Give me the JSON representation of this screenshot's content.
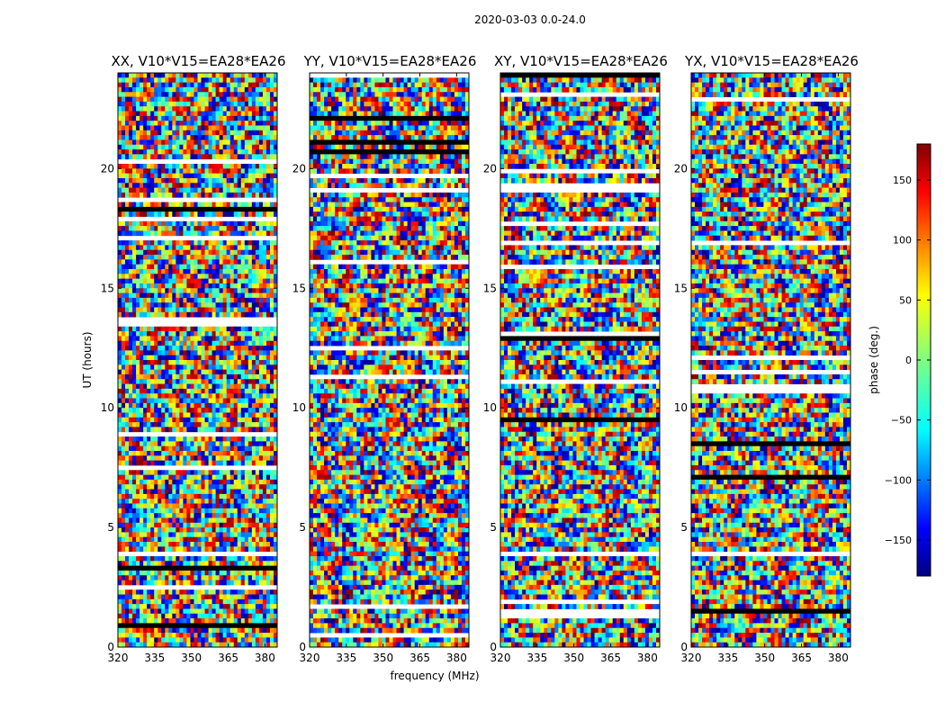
{
  "figure": {
    "suptitle": "2020-03-03 0.0-24.0",
    "ylabel": "UT (hours)",
    "xlabel": "frequency (MHz)"
  },
  "chart_data": [
    {
      "type": "heatmap",
      "title": "XX, V10*V15=EA28*EA26",
      "xlim": [
        320,
        385
      ],
      "ylim": [
        0,
        24
      ],
      "xticks": [
        320,
        335,
        350,
        365,
        380
      ],
      "yticks": [
        0,
        5,
        10,
        15,
        20
      ],
      "xlabel": "",
      "ylabel": "UT (hours)"
    },
    {
      "type": "heatmap",
      "title": "YY, V10*V15=EA28*EA26",
      "xlim": [
        320,
        385
      ],
      "ylim": [
        0,
        24
      ],
      "xticks": [
        320,
        335,
        350,
        365,
        380
      ],
      "yticks": [
        0,
        5,
        10,
        15,
        20
      ],
      "xlabel": "frequency (MHz)",
      "ylabel": ""
    },
    {
      "type": "heatmap",
      "title": "XY, V10*V15=EA28*EA26",
      "xlim": [
        320,
        385
      ],
      "ylim": [
        0,
        24
      ],
      "xticks": [
        320,
        335,
        350,
        365,
        380
      ],
      "yticks": [
        0,
        5,
        10,
        15,
        20
      ],
      "xlabel": "",
      "ylabel": ""
    },
    {
      "type": "heatmap",
      "title": "YX, V10*V15=EA28*EA26",
      "xlim": [
        320,
        385
      ],
      "ylim": [
        0,
        24
      ],
      "xticks": [
        320,
        335,
        350,
        365,
        380
      ],
      "yticks": [
        0,
        5,
        10,
        15,
        20
      ],
      "xlabel": "",
      "ylabel": ""
    }
  ],
  "colorbar": {
    "label": "phase (deg.)",
    "range": [
      -180,
      180
    ],
    "ticks": [
      150,
      100,
      50,
      0,
      -50,
      -100,
      -150
    ],
    "tick_labels": [
      "150",
      "100",
      "50",
      "0",
      "−50",
      "−100",
      "−150"
    ],
    "colormap": "jet",
    "colors": [
      "#000080",
      "#0000ff",
      "#0080ff",
      "#00ffff",
      "#80ff80",
      "#ffff00",
      "#ff8000",
      "#ff0000",
      "#800000"
    ]
  }
}
